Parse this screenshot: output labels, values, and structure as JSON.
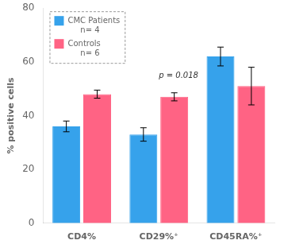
{
  "chart_data": {
    "type": "bar",
    "categories": [
      "CD4%",
      "CD29%⁺",
      "CD45RA%⁺"
    ],
    "series": [
      {
        "name": "CMC Patients\n     n= 4",
        "color": "#36a2eb",
        "values": [
          36.0,
          33.0,
          62.0
        ],
        "errors": [
          2.0,
          2.5,
          3.5
        ]
      },
      {
        "name": "Controls\n     n= 6",
        "color": "#ff6384",
        "values": [
          48.0,
          47.0,
          51.0
        ],
        "errors": [
          1.5,
          1.5,
          7.0
        ]
      }
    ],
    "ylabel": "% positive cells",
    "ylim": [
      0,
      80
    ],
    "yticks": [
      0,
      20,
      40,
      60,
      80
    ],
    "grid": false,
    "legend": "upper left",
    "annotations": [
      {
        "text": "p = 0.018",
        "x": "CD29%⁺",
        "y": 54
      }
    ]
  }
}
